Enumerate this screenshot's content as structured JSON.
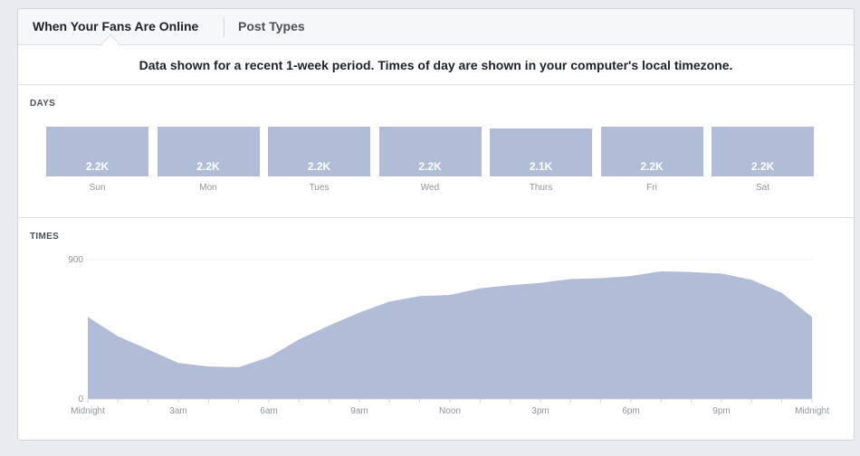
{
  "tabs": [
    {
      "label": "When Your Fans Are Online",
      "active": true
    },
    {
      "label": "Post Types",
      "active": false
    }
  ],
  "notice": "Data shown for a recent 1-week period. Times of day are shown in your computer's local timezone.",
  "days_section": {
    "label": "DAYS"
  },
  "times_section": {
    "label": "TIMES"
  },
  "colors": {
    "fill": "#b1bcd7",
    "text_muted": "#90949c",
    "border": "#dddfe2"
  },
  "chart_data": [
    {
      "type": "bar",
      "title": "DAYS",
      "categories": [
        "Sun",
        "Mon",
        "Tues",
        "Wed",
        "Thurs",
        "Fri",
        "Sat"
      ],
      "values": [
        2200,
        2200,
        2200,
        2200,
        2100,
        2200,
        2200
      ],
      "value_labels": [
        "2.2K",
        "2.2K",
        "2.2K",
        "2.2K",
        "2.1K",
        "2.2K",
        "2.2K"
      ]
    },
    {
      "type": "area",
      "title": "TIMES",
      "x": [
        0,
        1,
        2,
        3,
        4,
        5,
        6,
        7,
        8,
        9,
        10,
        11,
        12,
        13,
        14,
        15,
        16,
        17,
        18,
        19,
        20,
        21,
        22,
        23,
        24
      ],
      "values": [
        530,
        405,
        320,
        233,
        210,
        205,
        270,
        385,
        475,
        558,
        630,
        665,
        672,
        715,
        735,
        750,
        775,
        780,
        795,
        825,
        820,
        810,
        770,
        685,
        530
      ],
      "ylim": [
        0,
        900
      ],
      "yticks": [
        0,
        900
      ],
      "xtick_positions": [
        0,
        3,
        6,
        9,
        12,
        15,
        18,
        21,
        24
      ],
      "xtick_labels": [
        "Midnight",
        "3am",
        "6am",
        "9am",
        "Noon",
        "3pm",
        "6pm",
        "9pm",
        "Midnight"
      ],
      "grid": true
    }
  ]
}
